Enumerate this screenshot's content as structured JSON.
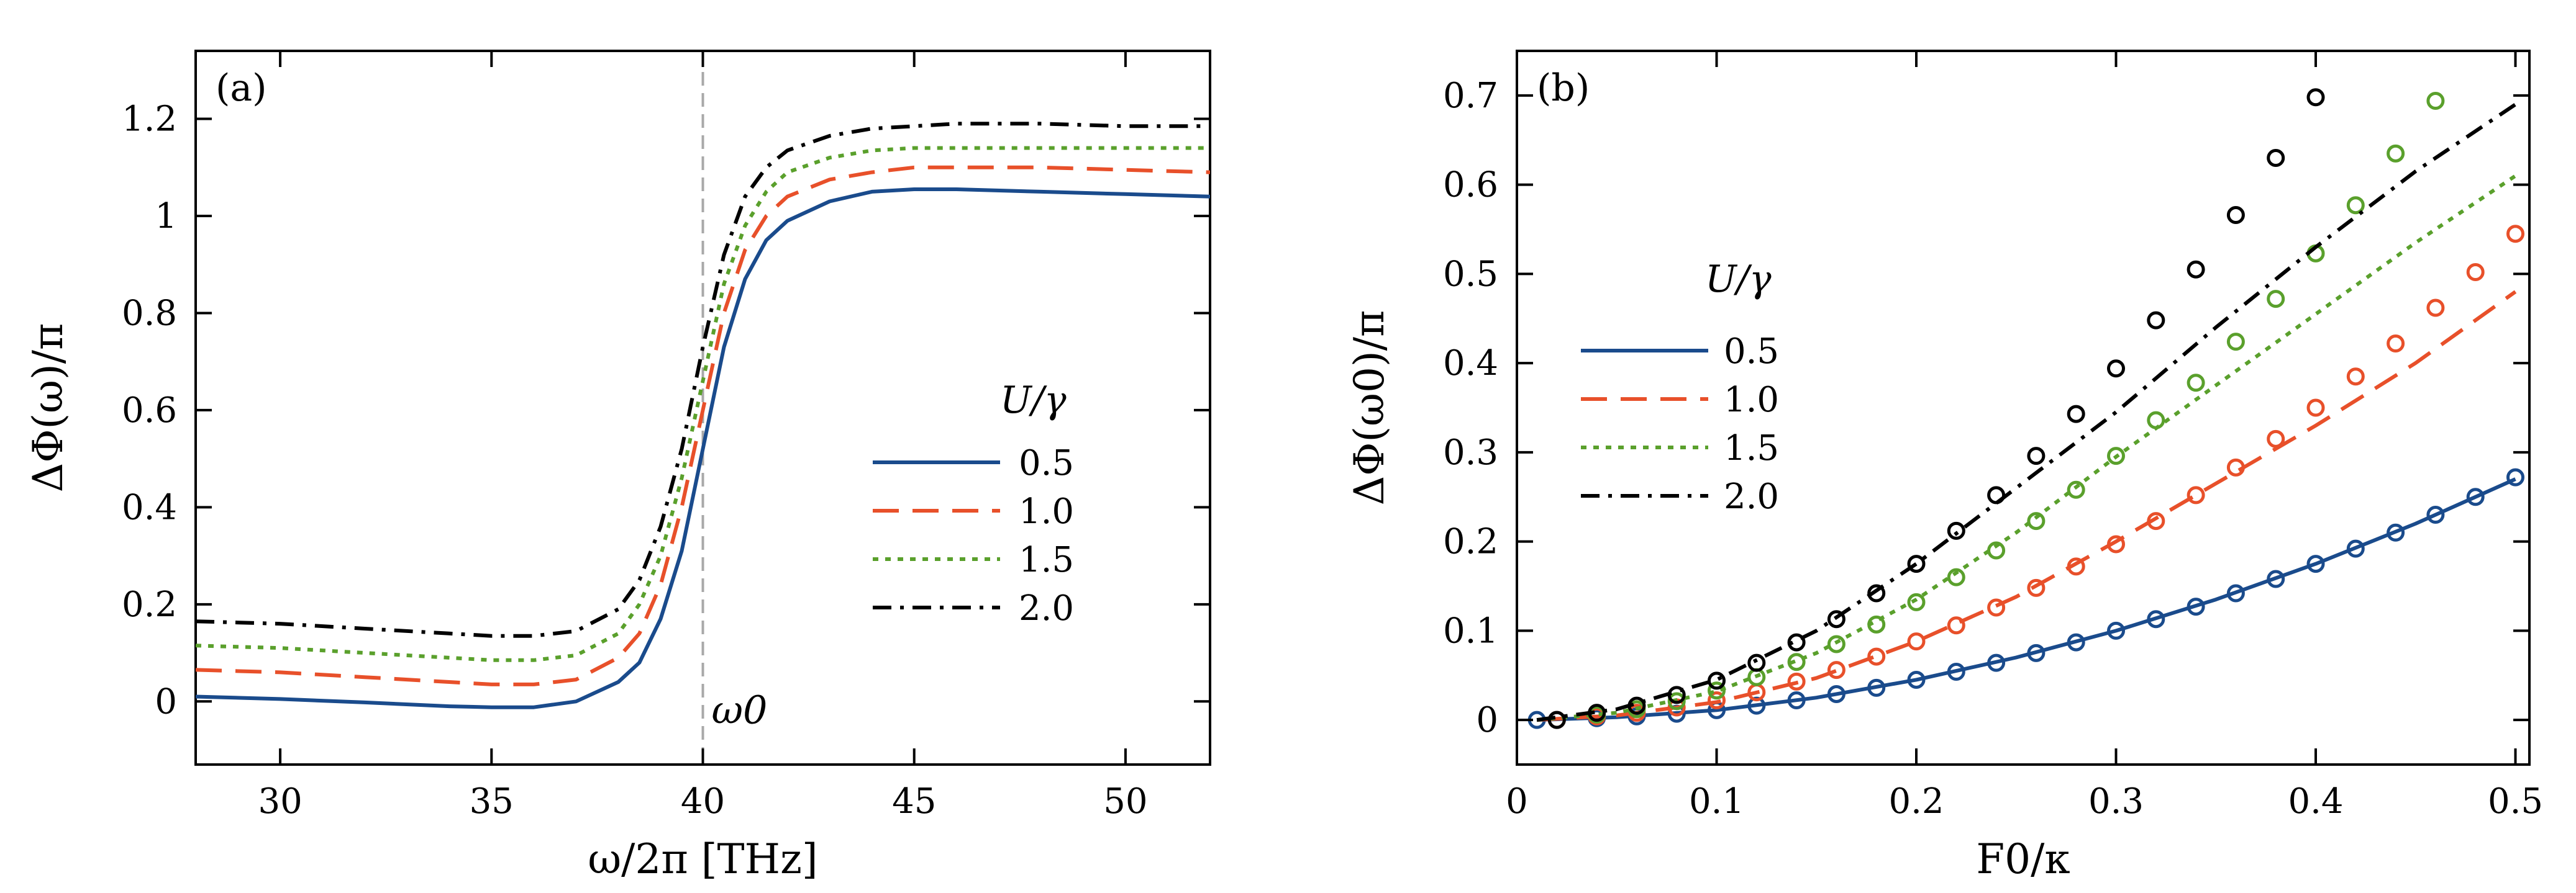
{
  "chart_data": [
    {
      "type": "line",
      "panel_label": "(a)",
      "xlabel": "ω/2π [THz]",
      "ylabel": "ΔΦ(ω)/π",
      "xlim": [
        28,
        52
      ],
      "ylim": [
        -0.13,
        1.34
      ],
      "xticks": [
        30,
        35,
        40,
        45,
        50
      ],
      "xtick_labels": [
        "30",
        "35",
        "40",
        "45",
        "50"
      ],
      "yticks": [
        0,
        0.2,
        0.4,
        0.6,
        0.8,
        1,
        1.2
      ],
      "ytick_labels": [
        "0",
        "0.2",
        "0.4",
        "0.6",
        "0.8",
        "1",
        "1.2"
      ],
      "vline": {
        "x": 40,
        "label": "ω0"
      },
      "legend": {
        "title": "U/γ",
        "position": "center-right"
      },
      "grid": false,
      "series": [
        {
          "name": "0.5",
          "color": "#1a4b8c",
          "dash": "solid",
          "x": [
            28,
            30,
            32,
            34,
            35,
            36,
            37,
            38,
            38.5,
            39,
            39.5,
            40,
            40.5,
            41,
            41.5,
            42,
            43,
            44,
            45,
            46,
            48,
            50,
            52
          ],
          "y": [
            0.01,
            0.005,
            -0.002,
            -0.01,
            -0.012,
            -0.012,
            0.0,
            0.04,
            0.08,
            0.17,
            0.31,
            0.52,
            0.73,
            0.87,
            0.95,
            0.99,
            1.03,
            1.05,
            1.055,
            1.055,
            1.05,
            1.045,
            1.04
          ]
        },
        {
          "name": "1.0",
          "color": "#e8502a",
          "dash": "long-dash",
          "x": [
            28,
            30,
            32,
            34,
            35,
            36,
            37,
            38,
            38.5,
            39,
            39.5,
            40,
            40.5,
            41,
            41.5,
            42,
            43,
            44,
            45,
            46,
            48,
            50,
            52
          ],
          "y": [
            0.065,
            0.06,
            0.05,
            0.04,
            0.035,
            0.035,
            0.045,
            0.09,
            0.14,
            0.24,
            0.4,
            0.6,
            0.8,
            0.93,
            1.0,
            1.04,
            1.075,
            1.09,
            1.1,
            1.1,
            1.1,
            1.095,
            1.09
          ]
        },
        {
          "name": "1.5",
          "color": "#5aa02c",
          "dash": "dotted",
          "x": [
            28,
            30,
            32,
            34,
            35,
            36,
            37,
            38,
            38.5,
            39,
            39.5,
            40,
            40.5,
            41,
            41.5,
            42,
            43,
            44,
            45,
            46,
            48,
            50,
            52
          ],
          "y": [
            0.115,
            0.11,
            0.1,
            0.09,
            0.085,
            0.085,
            0.095,
            0.14,
            0.2,
            0.3,
            0.46,
            0.66,
            0.86,
            0.98,
            1.05,
            1.09,
            1.12,
            1.135,
            1.14,
            1.14,
            1.14,
            1.14,
            1.14
          ]
        },
        {
          "name": "2.0",
          "color": "#000000",
          "dash": "dash-dot",
          "x": [
            28,
            30,
            32,
            34,
            35,
            36,
            37,
            38,
            38.5,
            39,
            39.5,
            40,
            40.5,
            41,
            41.5,
            42,
            43,
            44,
            45,
            46,
            48,
            50,
            52
          ],
          "y": [
            0.165,
            0.16,
            0.15,
            0.14,
            0.135,
            0.135,
            0.145,
            0.19,
            0.25,
            0.36,
            0.52,
            0.73,
            0.92,
            1.04,
            1.1,
            1.135,
            1.165,
            1.18,
            1.185,
            1.19,
            1.19,
            1.185,
            1.185
          ]
        }
      ]
    },
    {
      "type": "line",
      "panel_label": "(b)",
      "xlabel": "F0/κ",
      "ylabel": "ΔΦ(ω0)/π",
      "xlim": [
        0,
        0.507
      ],
      "ylim": [
        -0.05,
        0.75
      ],
      "xticks": [
        0,
        0.1,
        0.2,
        0.3,
        0.4,
        0.5
      ],
      "xtick_labels": [
        "0",
        "0.1",
        "0.2",
        "0.3",
        "0.4",
        "0.5"
      ],
      "yticks": [
        0,
        0.1,
        0.2,
        0.3,
        0.4,
        0.5,
        0.6,
        0.7
      ],
      "ytick_labels": [
        "0",
        "0.1",
        "0.2",
        "0.3",
        "0.4",
        "0.5",
        "0.6",
        "0.7"
      ],
      "legend": {
        "title": "U/γ",
        "position": "center-left"
      },
      "grid": false,
      "series": [
        {
          "name": "0.5",
          "color": "#1a4b8c",
          "dash": "solid",
          "x": [
            0.01,
            0.05,
            0.1,
            0.15,
            0.2,
            0.25,
            0.3,
            0.35,
            0.4,
            0.45,
            0.5
          ],
          "y": [
            0.0,
            0.003,
            0.011,
            0.025,
            0.045,
            0.07,
            0.1,
            0.135,
            0.175,
            0.22,
            0.27
          ],
          "markers_x": [
            0.01,
            0.02,
            0.04,
            0.06,
            0.08,
            0.1,
            0.12,
            0.14,
            0.16,
            0.18,
            0.2,
            0.22,
            0.24,
            0.26,
            0.28,
            0.3,
            0.32,
            0.34,
            0.36,
            0.38,
            0.4,
            0.42,
            0.44,
            0.46,
            0.48,
            0.5
          ],
          "markers_y": [
            0.0,
            0.0,
            0.002,
            0.004,
            0.007,
            0.011,
            0.016,
            0.022,
            0.029,
            0.036,
            0.045,
            0.054,
            0.064,
            0.075,
            0.087,
            0.1,
            0.113,
            0.127,
            0.142,
            0.158,
            0.175,
            0.192,
            0.21,
            0.23,
            0.25,
            0.272
          ]
        },
        {
          "name": "1.0",
          "color": "#e8502a",
          "dash": "long-dash",
          "x": [
            0.01,
            0.05,
            0.1,
            0.15,
            0.2,
            0.25,
            0.3,
            0.35,
            0.4,
            0.45,
            0.5
          ],
          "y": [
            0.0,
            0.005,
            0.02,
            0.047,
            0.088,
            0.138,
            0.2,
            0.265,
            0.33,
            0.4,
            0.48
          ],
          "markers_x": [
            0.02,
            0.04,
            0.06,
            0.08,
            0.1,
            0.12,
            0.14,
            0.16,
            0.18,
            0.2,
            0.22,
            0.24,
            0.26,
            0.28,
            0.3,
            0.32,
            0.34,
            0.36,
            0.38,
            0.4,
            0.42,
            0.44,
            0.46,
            0.48,
            0.5
          ],
          "markers_y": [
            0.0,
            0.004,
            0.008,
            0.014,
            0.022,
            0.031,
            0.043,
            0.056,
            0.071,
            0.088,
            0.106,
            0.126,
            0.148,
            0.172,
            0.197,
            0.223,
            0.252,
            0.283,
            0.315,
            0.35,
            0.385,
            0.422,
            0.462,
            0.502,
            0.545
          ]
        },
        {
          "name": "1.5",
          "color": "#5aa02c",
          "dash": "dotted",
          "x": [
            0.01,
            0.05,
            0.1,
            0.15,
            0.2,
            0.25,
            0.3,
            0.35,
            0.4,
            0.45,
            0.5
          ],
          "y": [
            0.0,
            0.008,
            0.032,
            0.075,
            0.135,
            0.21,
            0.295,
            0.375,
            0.455,
            0.535,
            0.61
          ],
          "markers_x": [
            0.04,
            0.06,
            0.08,
            0.1,
            0.12,
            0.14,
            0.16,
            0.18,
            0.2,
            0.22,
            0.24,
            0.26,
            0.28,
            0.3,
            0.32,
            0.34,
            0.36,
            0.38,
            0.4,
            0.42,
            0.44,
            0.46
          ],
          "markers_y": [
            0.006,
            0.012,
            0.021,
            0.033,
            0.048,
            0.065,
            0.085,
            0.107,
            0.132,
            0.16,
            0.19,
            0.223,
            0.258,
            0.296,
            0.336,
            0.378,
            0.424,
            0.472,
            0.523,
            0.577,
            0.635,
            0.694
          ]
        },
        {
          "name": "2.0",
          "color": "#000000",
          "dash": "dash-dot",
          "x": [
            0.01,
            0.05,
            0.1,
            0.15,
            0.2,
            0.25,
            0.3,
            0.35,
            0.4,
            0.45,
            0.5
          ],
          "y": [
            0.0,
            0.012,
            0.045,
            0.1,
            0.175,
            0.26,
            0.345,
            0.44,
            0.53,
            0.615,
            0.69
          ],
          "markers_x": [
            0.02,
            0.04,
            0.06,
            0.08,
            0.1,
            0.12,
            0.14,
            0.16,
            0.18,
            0.2,
            0.22,
            0.24,
            0.26,
            0.28,
            0.3,
            0.32,
            0.34,
            0.36,
            0.38,
            0.4
          ],
          "markers_y": [
            0.0,
            0.008,
            0.016,
            0.028,
            0.044,
            0.064,
            0.087,
            0.113,
            0.142,
            0.175,
            0.212,
            0.252,
            0.296,
            0.343,
            0.394,
            0.448,
            0.505,
            0.566,
            0.63,
            0.698
          ]
        }
      ]
    }
  ]
}
